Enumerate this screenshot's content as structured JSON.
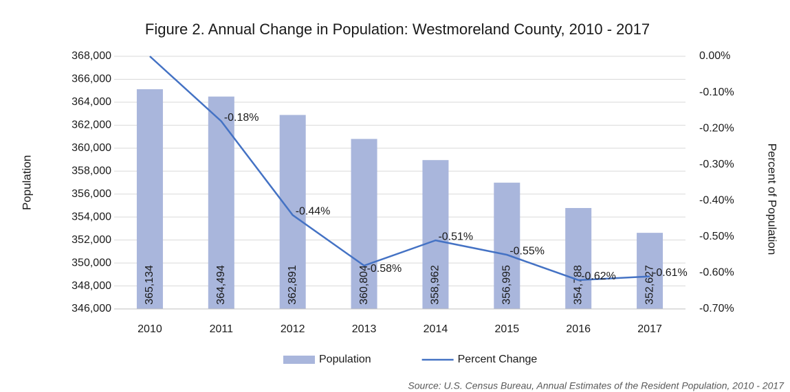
{
  "chart_data": {
    "type": "combo",
    "title": "Figure 2. Annual Change in Population: Westmoreland County, 2010 - 2017",
    "y_label": "Population",
    "y2_label": "Percent of Population",
    "source": "Source: U.S. Census Bureau, Annual Estimates of the Resident Population, 2010 - 2017",
    "categories": [
      "2010",
      "2011",
      "2012",
      "2013",
      "2014",
      "2015",
      "2016",
      "2017"
    ],
    "series": [
      {
        "name": "Population",
        "type": "bar",
        "color": "#a9b6dc",
        "values": [
          365134,
          364494,
          362891,
          360804,
          358962,
          356995,
          354788,
          352627
        ],
        "value_labels": [
          "365,134",
          "364,494",
          "362,891",
          "360,804",
          "358,962",
          "356,995",
          "354,788",
          "352,627"
        ]
      },
      {
        "name": "Percent Change",
        "type": "line",
        "axis": "y2",
        "color": "#4472c4",
        "values": [
          0,
          -0.18,
          -0.44,
          -0.58,
          -0.51,
          -0.55,
          -0.62,
          -0.61
        ],
        "value_labels": [
          null,
          "-0.18%",
          "-0.44%",
          "-0.58%",
          "-0.51%",
          "-0.55%",
          "-0.62%",
          "-0.61%"
        ]
      }
    ],
    "ylim": [
      346000,
      368000
    ],
    "yticks": [
      {
        "value": 346000,
        "label": "346,000"
      },
      {
        "value": 348000,
        "label": "348,000"
      },
      {
        "value": 350000,
        "label": "350,000"
      },
      {
        "value": 352000,
        "label": "352,000"
      },
      {
        "value": 354000,
        "label": "354,000"
      },
      {
        "value": 356000,
        "label": "356,000"
      },
      {
        "value": 358000,
        "label": "358,000"
      },
      {
        "value": 360000,
        "label": "360,000"
      },
      {
        "value": 362000,
        "label": "362,000"
      },
      {
        "value": 364000,
        "label": "364,000"
      },
      {
        "value": 366000,
        "label": "366,000"
      },
      {
        "value": 368000,
        "label": "368,000"
      }
    ],
    "y2lim": [
      -0.7,
      0
    ],
    "y2ticks": [
      {
        "value": -0.7,
        "label": "-0.70%"
      },
      {
        "value": -0.6,
        "label": "-0.60%"
      },
      {
        "value": -0.5,
        "label": "-0.50%"
      },
      {
        "value": -0.4,
        "label": "-0.40%"
      },
      {
        "value": -0.3,
        "label": "-0.30%"
      },
      {
        "value": -0.2,
        "label": "-0.20%"
      },
      {
        "value": -0.1,
        "label": "-0.10%"
      },
      {
        "value": 0,
        "label": "0.00%"
      }
    ],
    "grid": true,
    "legend": "bottom"
  }
}
